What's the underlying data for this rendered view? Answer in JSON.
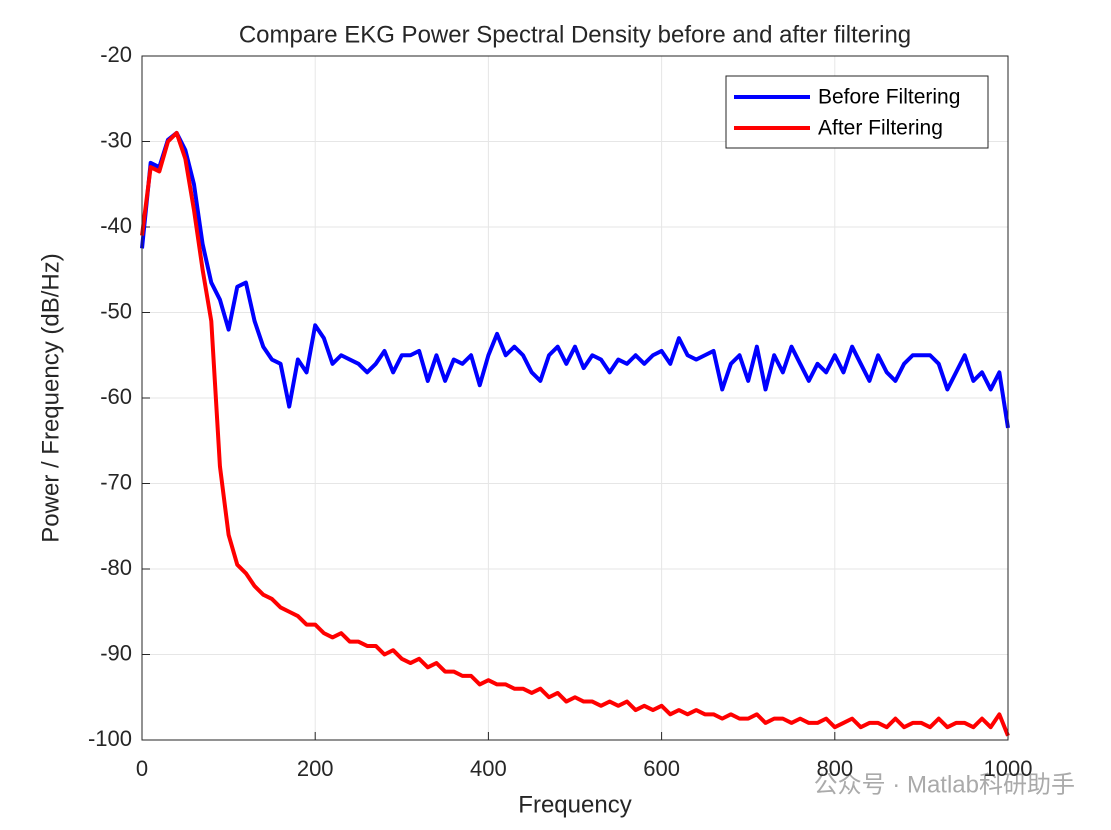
{
  "chart_data": {
    "type": "line",
    "title": "Compare EKG Power Spectral Density before and after filtering",
    "x_label": "Frequency",
    "y_label": "Power / Frequency (dB/Hz)",
    "watermark": "公众号 · Matlab科研助手",
    "xlim": [
      0,
      1000
    ],
    "xticks": [
      0,
      200,
      400,
      600,
      800,
      1000
    ],
    "ylim": [
      -100,
      -20
    ],
    "yticks": [
      -100,
      -90,
      -80,
      -70,
      -60,
      -50,
      -40,
      -30,
      -20
    ],
    "grid": true,
    "legend": "upper right",
    "x": [
      0,
      10,
      20,
      30,
      40,
      50,
      60,
      70,
      80,
      90,
      100,
      110,
      120,
      130,
      140,
      150,
      160,
      170,
      180,
      190,
      200,
      210,
      220,
      230,
      240,
      250,
      260,
      270,
      280,
      290,
      300,
      310,
      320,
      330,
      340,
      350,
      360,
      370,
      380,
      390,
      400,
      410,
      420,
      430,
      440,
      450,
      460,
      470,
      480,
      490,
      500,
      510,
      520,
      530,
      540,
      550,
      560,
      570,
      580,
      590,
      600,
      610,
      620,
      630,
      640,
      650,
      660,
      670,
      680,
      690,
      700,
      710,
      720,
      730,
      740,
      750,
      760,
      770,
      780,
      790,
      800,
      810,
      820,
      830,
      840,
      850,
      860,
      870,
      880,
      890,
      900,
      910,
      920,
      930,
      940,
      950,
      960,
      970,
      980,
      990,
      1000
    ],
    "series": [
      {
        "name": "Before Filtering",
        "color": "#0000ff",
        "values": [
          -42.5,
          -32.5,
          -33,
          -29.8,
          -29,
          -31,
          -35,
          -42,
          -46.5,
          -48.5,
          -52,
          -47,
          -46.5,
          -51,
          -54,
          -55.5,
          -56,
          -61,
          -55.5,
          -57,
          -51.5,
          -53,
          -56,
          -55,
          -55.5,
          -56,
          -57,
          -56,
          -54.5,
          -57,
          -55,
          -55,
          -54.5,
          -58,
          -55,
          -58,
          -55.5,
          -56,
          -55,
          -58.5,
          -55,
          -52.5,
          -55,
          -54,
          -55,
          -57,
          -58,
          -55,
          -54,
          -56,
          -54,
          -56.5,
          -55,
          -55.5,
          -57,
          -55.5,
          -56,
          -55,
          -56,
          -55,
          -54.5,
          -56,
          -53,
          -55,
          -55.5,
          -55,
          -54.5,
          -59,
          -56,
          -55,
          -58,
          -54,
          -59,
          -55,
          -57,
          -54,
          -56,
          -58,
          -56,
          -57,
          -55,
          -57,
          -54,
          -56,
          -58,
          -55,
          -57,
          -58,
          -56,
          -55,
          -55,
          -55,
          -56,
          -59,
          -57,
          -55,
          -58,
          -57,
          -59,
          -57,
          -63.5
        ]
      },
      {
        "name": "After Filtering",
        "color": "#ff0000",
        "values": [
          -41,
          -33,
          -33.5,
          -30,
          -29,
          -32,
          -38,
          -45,
          -51,
          -68,
          -76,
          -79.5,
          -80.5,
          -82,
          -83,
          -83.5,
          -84.5,
          -85,
          -85.5,
          -86.5,
          -86.5,
          -87.5,
          -88,
          -87.5,
          -88.5,
          -88.5,
          -89,
          -89,
          -90,
          -89.5,
          -90.5,
          -91,
          -90.5,
          -91.5,
          -91,
          -92,
          -92,
          -92.5,
          -92.5,
          -93.5,
          -93,
          -93.5,
          -93.5,
          -94,
          -94,
          -94.5,
          -94,
          -95,
          -94.5,
          -95.5,
          -95,
          -95.5,
          -95.5,
          -96,
          -95.5,
          -96,
          -95.5,
          -96.5,
          -96,
          -96.5,
          -96,
          -97,
          -96.5,
          -97,
          -96.5,
          -97,
          -97,
          -97.5,
          -97,
          -97.5,
          -97.5,
          -97,
          -98,
          -97.5,
          -97.5,
          -98,
          -97.5,
          -98,
          -98,
          -97.5,
          -98.5,
          -98,
          -97.5,
          -98.5,
          -98,
          -98,
          -98.5,
          -97.5,
          -98.5,
          -98,
          -98,
          -98.5,
          -97.5,
          -98.5,
          -98,
          -98,
          -98.5,
          -97.5,
          -98.5,
          -97,
          -99.5
        ]
      }
    ]
  }
}
